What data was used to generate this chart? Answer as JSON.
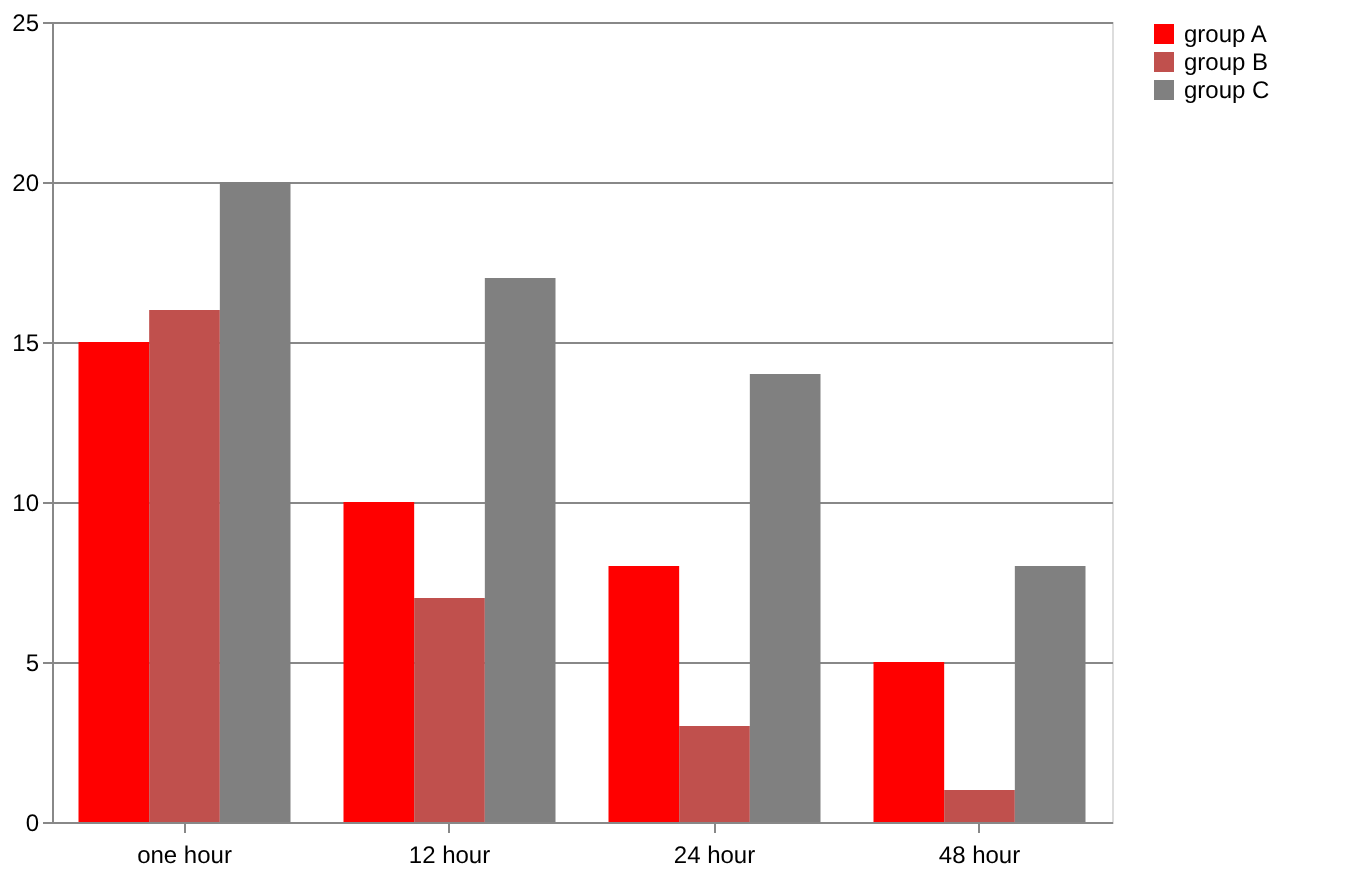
{
  "chart_data": {
    "type": "bar",
    "categories": [
      "one hour",
      "12 hour",
      "24 hour",
      "48 hour"
    ],
    "series": [
      {
        "name": "group A",
        "color": "#ff0000",
        "values": [
          15,
          10,
          8,
          5
        ]
      },
      {
        "name": "group B",
        "color": "#c0504d",
        "values": [
          16,
          7,
          3,
          1
        ]
      },
      {
        "name": "group C",
        "color": "#808080",
        "values": [
          20,
          17,
          14,
          8
        ]
      }
    ],
    "ylim": [
      0,
      25
    ],
    "yticks": [
      0,
      5,
      10,
      15,
      20,
      25
    ],
    "grid": "y",
    "legend": "right"
  }
}
